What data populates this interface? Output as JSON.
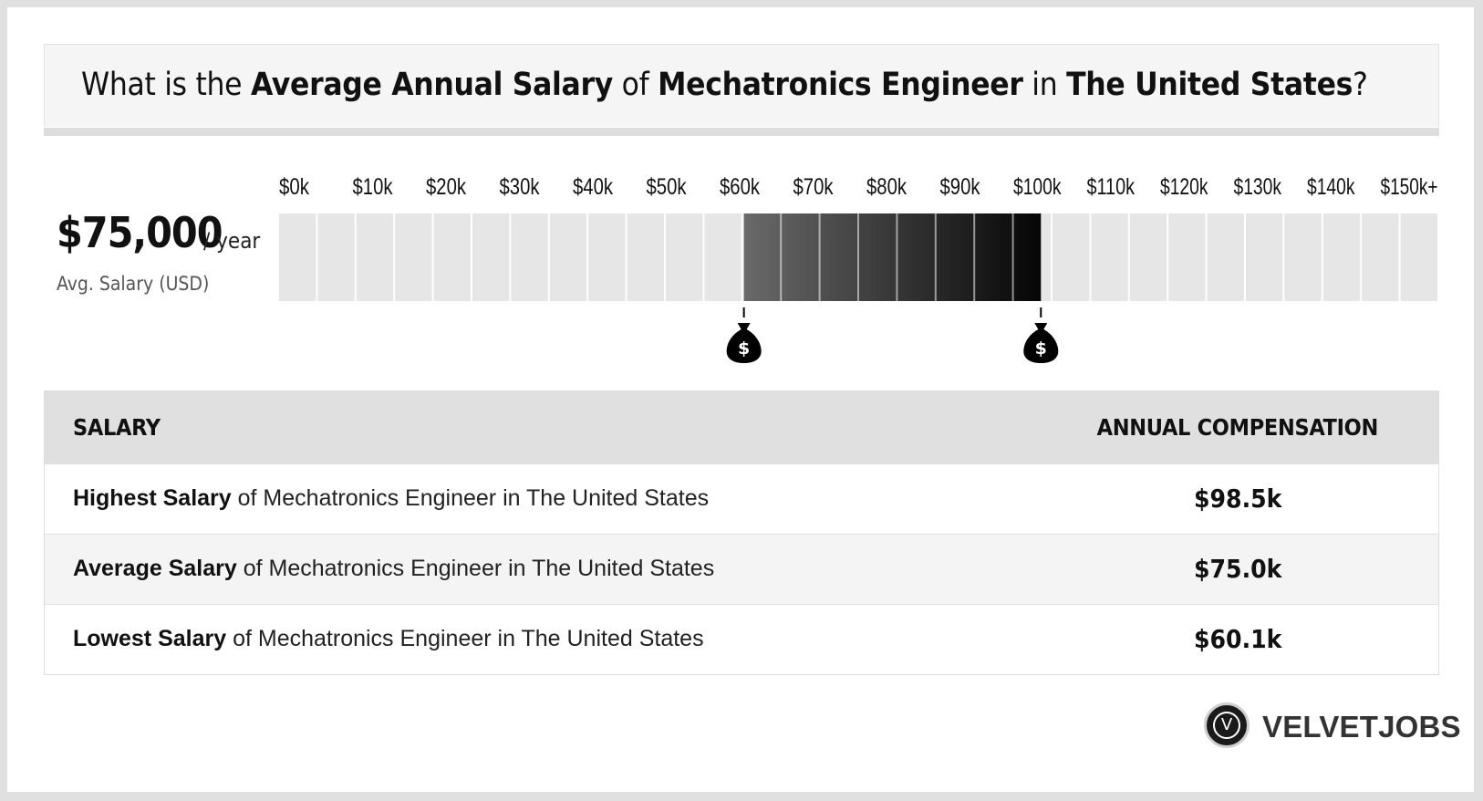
{
  "header": {
    "q_prefix": "What is the",
    "q_b1": "Average Annual Salary",
    "q_mid1": "of",
    "q_b2": "Mechatronics Engineer",
    "q_mid2": "in",
    "q_b3": "The United States",
    "q_suffix": "?"
  },
  "summary": {
    "value": "$75,000",
    "unit": "/ year",
    "label": "Avg. Salary (USD)"
  },
  "chart_data": {
    "type": "bar",
    "tick_labels": [
      "$0k",
      "$10k",
      "$20k",
      "$30k",
      "$40k",
      "$50k",
      "$60k",
      "$70k",
      "$80k",
      "$90k",
      "$100k",
      "$110k",
      "$120k",
      "$130k",
      "$140k",
      "$150k+"
    ],
    "xlim": [
      0,
      150
    ],
    "unit": "$k",
    "range_low": 60.1,
    "range_high": 98.5,
    "average": 75.0,
    "markers": [
      "money-bag-icon",
      "money-bag-icon"
    ],
    "colors": {
      "empty": "#e6e6e6",
      "gradient_start": "#6a6a6a",
      "gradient_end": "#050505",
      "marker": "#000000"
    }
  },
  "table": {
    "header_left": "SALARY",
    "header_right": "ANNUAL COMPENSATION",
    "rows": [
      {
        "bold": "Highest Salary",
        "text": "of Mechatronics Engineer in The United States",
        "value": "$98.5k"
      },
      {
        "bold": "Average Salary",
        "text": "of Mechatronics Engineer in The United States",
        "value": "$75.0k"
      },
      {
        "bold": "Lowest Salary",
        "text": "of Mechatronics Engineer in The United States",
        "value": "$60.1k"
      }
    ]
  },
  "brand": {
    "name": "VELVETJOBS",
    "mark": "V"
  }
}
